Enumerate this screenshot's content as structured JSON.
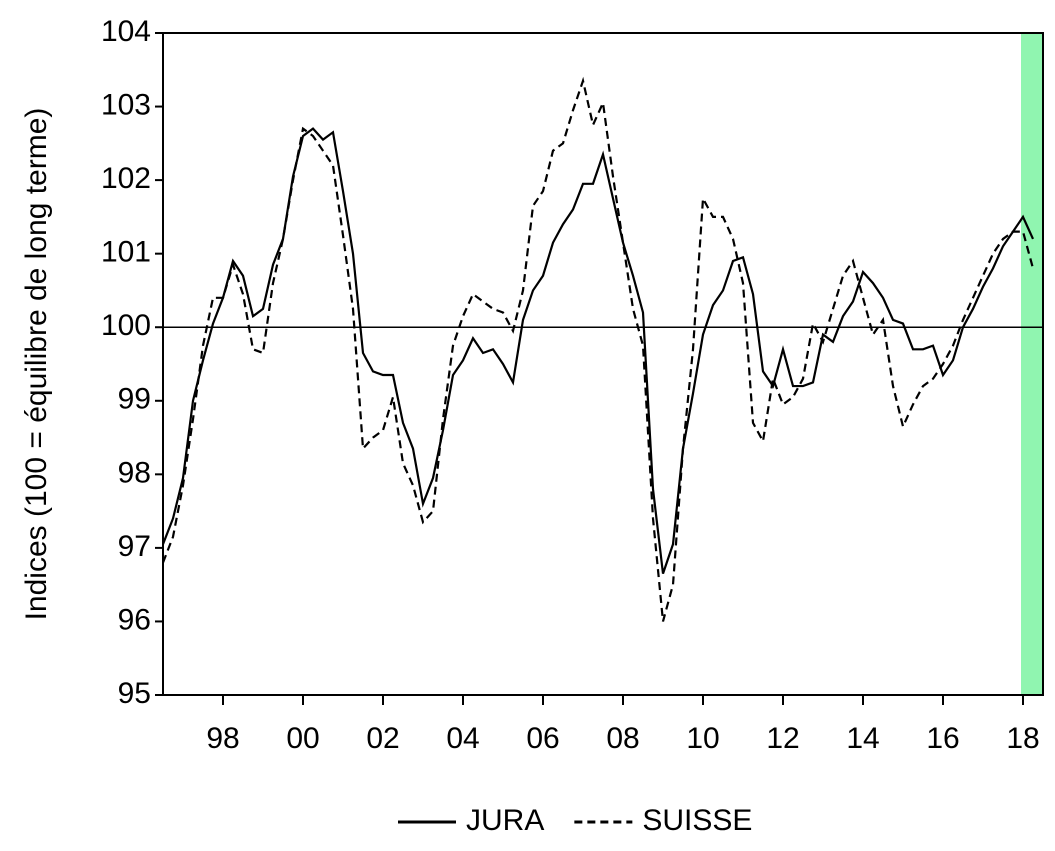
{
  "chart_data": {
    "type": "line",
    "y_label": "Indices (100 = équilibre de long terme)",
    "x": [
      1997,
      1997.25,
      1997.5,
      1997.75,
      1998,
      1998.25,
      1998.5,
      1998.75,
      1999,
      1999.25,
      1999.5,
      1999.75,
      2000,
      2000.25,
      2000.5,
      2000.75,
      2001,
      2001.25,
      2001.5,
      2001.75,
      2002,
      2002.25,
      2002.5,
      2002.75,
      2003,
      2003.25,
      2003.5,
      2003.75,
      2004,
      2004.25,
      2004.5,
      2004.75,
      2005,
      2005.25,
      2005.5,
      2005.75,
      2006,
      2006.25,
      2006.5,
      2006.75,
      2007,
      2007.25,
      2007.5,
      2007.75,
      2008,
      2008.25,
      2008.5,
      2008.75,
      2009,
      2009.25,
      2009.5,
      2009.75,
      2010,
      2010.25,
      2010.5,
      2010.75,
      2011,
      2011.25,
      2011.5,
      2011.75,
      2012,
      2012.25,
      2012.5,
      2012.75,
      2013,
      2013.25,
      2013.5,
      2013.75,
      2014,
      2014.25,
      2014.5,
      2014.75,
      2015,
      2015.25,
      2015.5,
      2015.75,
      2016,
      2016.25,
      2016.5,
      2016.75,
      2017,
      2017.25,
      2017.5,
      2017.75,
      2018,
      2018.25,
      2018.5,
      2018.75
    ],
    "series": [
      {
        "name": "JURA",
        "color": "#000000",
        "dash": "solid",
        "values": [
          97.05,
          97.4,
          97.95,
          99.0,
          99.55,
          100.05,
          100.4,
          100.9,
          100.7,
          100.15,
          100.25,
          100.85,
          101.2,
          102.05,
          102.6,
          102.7,
          102.55,
          102.65,
          101.85,
          101.0,
          99.65,
          99.4,
          99.35,
          99.35,
          98.7,
          98.35,
          97.6,
          97.95,
          98.6,
          99.35,
          99.55,
          99.85,
          99.65,
          99.7,
          99.5,
          99.25,
          100.1,
          100.5,
          100.7,
          101.15,
          101.4,
          101.6,
          101.95,
          101.95,
          102.35,
          101.75,
          101.15,
          100.7,
          100.2,
          97.8,
          96.65,
          97.05,
          98.35,
          99.1,
          99.9,
          100.3,
          100.5,
          100.9,
          100.95,
          100.45,
          99.4,
          99.2,
          99.7,
          99.2,
          99.2,
          99.25,
          99.9,
          99.8,
          100.15,
          100.35,
          100.75,
          100.6,
          100.4,
          100.1,
          100.05,
          99.7,
          99.7,
          99.75,
          99.35,
          99.55,
          100.0,
          100.25,
          100.55,
          100.8,
          101.1,
          101.3,
          101.5,
          101.2
        ]
      },
      {
        "name": "SUISSE",
        "color": "#000000",
        "dash": "dashed",
        "values": [
          96.8,
          97.15,
          97.85,
          98.75,
          99.75,
          100.4,
          100.4,
          100.85,
          100.45,
          99.7,
          99.65,
          100.6,
          101.2,
          102.0,
          102.7,
          102.6,
          102.4,
          102.2,
          101.25,
          100.25,
          98.35,
          98.5,
          98.6,
          99.05,
          98.15,
          97.85,
          97.35,
          97.5,
          98.75,
          99.75,
          100.15,
          100.45,
          100.35,
          100.25,
          100.2,
          99.95,
          100.5,
          101.65,
          101.85,
          102.4,
          102.5,
          102.95,
          103.35,
          102.75,
          103.05,
          102.05,
          101.15,
          100.25,
          99.75,
          97.4,
          96.0,
          96.5,
          98.35,
          99.7,
          101.75,
          101.5,
          101.5,
          101.2,
          100.6,
          98.7,
          98.45,
          99.3,
          98.95,
          99.05,
          99.3,
          100.05,
          99.8,
          100.25,
          100.7,
          100.9,
          100.4,
          99.9,
          100.1,
          99.2,
          98.65,
          98.95,
          99.2,
          99.3,
          99.5,
          99.75,
          100.1,
          100.4,
          100.7,
          101.0,
          101.2,
          101.3,
          101.3,
          100.8
        ]
      }
    ],
    "xlim": [
      1997,
      2019
    ],
    "xticks": [
      {
        "value": 1998.5,
        "label": "98"
      },
      {
        "value": 2000.5,
        "label": "00"
      },
      {
        "value": 2002.5,
        "label": "02"
      },
      {
        "value": 2004.5,
        "label": "04"
      },
      {
        "value": 2006.5,
        "label": "06"
      },
      {
        "value": 2008.5,
        "label": "08"
      },
      {
        "value": 2010.5,
        "label": "10"
      },
      {
        "value": 2012.5,
        "label": "12"
      },
      {
        "value": 2014.5,
        "label": "14"
      },
      {
        "value": 2016.5,
        "label": "16"
      },
      {
        "value": 2018.5,
        "label": "18"
      }
    ],
    "ylim": [
      95,
      104
    ],
    "yticks": [
      95,
      96,
      97,
      98,
      99,
      100,
      101,
      102,
      103,
      104
    ],
    "reference_line": 100,
    "shaded_region": {
      "x": [
        2018.45,
        2019
      ],
      "color": "#90f5b0"
    },
    "legend": "bottom"
  }
}
